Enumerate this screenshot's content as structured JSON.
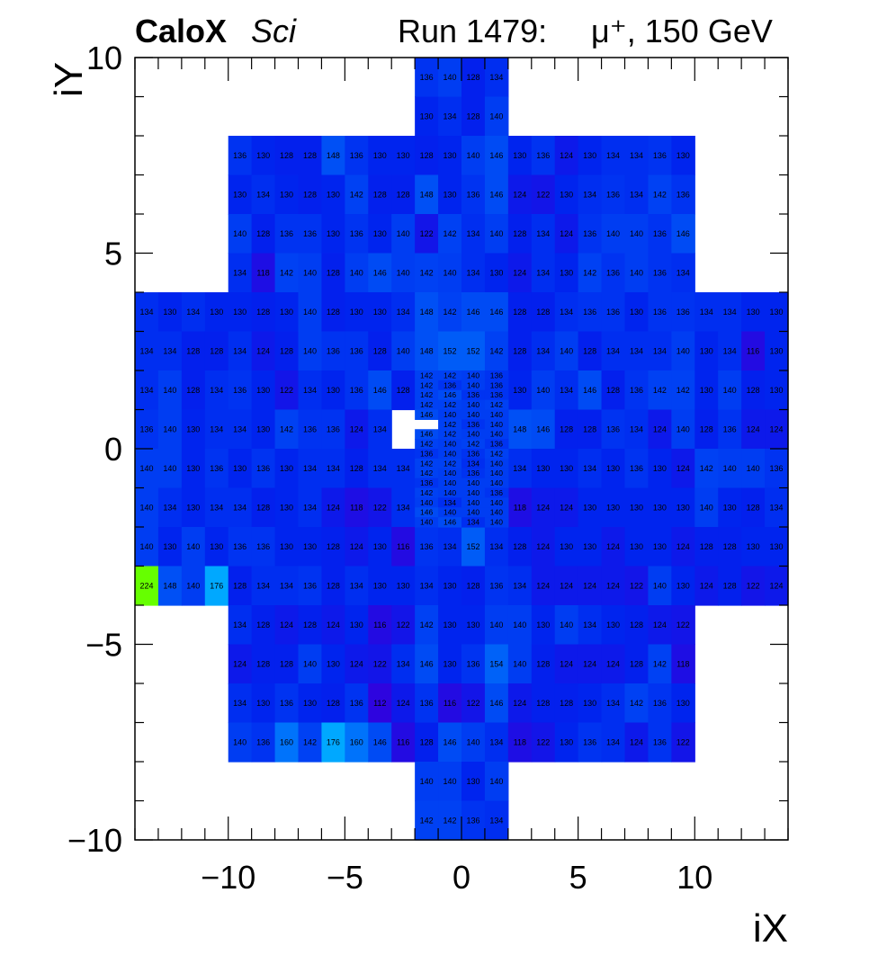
{
  "chart_data": {
    "type": "heatmap",
    "title_bold": "CaloX",
    "title_italic": "Sci",
    "run_label": "Run 1479:",
    "particle_label": "μ⁺, 150 GeV",
    "xlabel": "iX",
    "ylabel": "iY",
    "xlim": [
      -14,
      14
    ],
    "ylim": [
      -10,
      10
    ],
    "xticks": [
      "−10",
      "−5",
      "0",
      "5",
      "10"
    ],
    "yticks": [
      "−10",
      "−5",
      "0",
      "5",
      "10"
    ],
    "xtick_values": [
      -10,
      -5,
      0,
      5,
      10
    ],
    "ytick_values": [
      -10,
      -5,
      0,
      5,
      10
    ],
    "color_scale": [
      "#3300dd",
      "#0022ee",
      "#0050f5",
      "#0088ff",
      "#00ccff",
      "#00ffcc",
      "#66ff00"
    ],
    "value_range": [
      110,
      224
    ],
    "rows_large": [
      {
        "y": 9.5,
        "x0": -2,
        "values": [
          136,
          140,
          128,
          134
        ]
      },
      {
        "y": 8.5,
        "x0": -2,
        "values": [
          130,
          134,
          128,
          140
        ]
      },
      {
        "y": 7.5,
        "x0": -10,
        "values": [
          136,
          130,
          128,
          128,
          148,
          136,
          130,
          130,
          128,
          130,
          140,
          146,
          130,
          136,
          124,
          130,
          134,
          134,
          136,
          130
        ]
      },
      {
        "y": 6.5,
        "x0": -10,
        "values": [
          130,
          134,
          130,
          128,
          130,
          142,
          128,
          128,
          148,
          130,
          136,
          146,
          124,
          122,
          130,
          134,
          136,
          134,
          142,
          136
        ]
      },
      {
        "y": 5.5,
        "x0": -10,
        "values": [
          140,
          128,
          136,
          136,
          130,
          136,
          130,
          140,
          122,
          142,
          134,
          140,
          128,
          134,
          124,
          136,
          140,
          140,
          136,
          146
        ]
      },
      {
        "y": 4.5,
        "x0": -10,
        "values": [
          134,
          118,
          142,
          140,
          128,
          140,
          146,
          140,
          142,
          140,
          134,
          130,
          124,
          134,
          130,
          142,
          136,
          140,
          136,
          134
        ]
      },
      {
        "y": 3.5,
        "x0": -14,
        "values": [
          134,
          130,
          134,
          130,
          130,
          128,
          130,
          140,
          128,
          130,
          130,
          134,
          148,
          142,
          146,
          146,
          128,
          128,
          134,
          136,
          136,
          130,
          136,
          136,
          134,
          134,
          130,
          130
        ]
      },
      {
        "y": 2.5,
        "x0": -14,
        "values": [
          134,
          134,
          128,
          128,
          134,
          124,
          128,
          140,
          136,
          136,
          128,
          140,
          148,
          152,
          152,
          142,
          128,
          134,
          140,
          128,
          134,
          134,
          134,
          140,
          130,
          134,
          116,
          130
        ]
      },
      {
        "y": 1.5,
        "x0": -14,
        "values": [
          134,
          140,
          128,
          134,
          136,
          130,
          122,
          134,
          130,
          136,
          146,
          128,
          null,
          null,
          null,
          null,
          130,
          140,
          134,
          146,
          128,
          136,
          142,
          142,
          130,
          140,
          128,
          130
        ]
      },
      {
        "y": 0.5,
        "x0": -14,
        "values": [
          136,
          140,
          130,
          134,
          134,
          130,
          142,
          136,
          136,
          124,
          134,
          null,
          null,
          null,
          null,
          null,
          148,
          146,
          128,
          128,
          136,
          134,
          124,
          140,
          128,
          136,
          124,
          124
        ]
      },
      {
        "y": -0.5,
        "x0": -14,
        "values": [
          140,
          140,
          130,
          136,
          130,
          136,
          130,
          134,
          134,
          128,
          134,
          134,
          null,
          null,
          null,
          null,
          134,
          130,
          130,
          134,
          130,
          136,
          130,
          124,
          142,
          140,
          140,
          136
        ]
      },
      {
        "y": -1.5,
        "x0": -14,
        "values": [
          140,
          134,
          130,
          134,
          134,
          128,
          130,
          134,
          124,
          118,
          122,
          134,
          null,
          null,
          null,
          null,
          118,
          124,
          124,
          130,
          130,
          130,
          130,
          130,
          140,
          130,
          128,
          134
        ]
      },
      {
        "y": -2.5,
        "x0": -14,
        "values": [
          140,
          130,
          140,
          130,
          136,
          136,
          130,
          130,
          128,
          124,
          130,
          116,
          136,
          134,
          152,
          134,
          128,
          124,
          130,
          130,
          124,
          130,
          130,
          124,
          128,
          128,
          130,
          130
        ]
      },
      {
        "y": -3.5,
        "x0": -14,
        "values": [
          224,
          148,
          140,
          176,
          128,
          134,
          134,
          136,
          128,
          134,
          130,
          130,
          134,
          130,
          128,
          136,
          134,
          124,
          124,
          124,
          124,
          122,
          140,
          130,
          124,
          128,
          122,
          124
        ]
      },
      {
        "y": -4.5,
        "x0": -10,
        "values": [
          134,
          128,
          124,
          128,
          124,
          130,
          116,
          122,
          142,
          130,
          130,
          140,
          140,
          130,
          140,
          134,
          130,
          128,
          124,
          122
        ]
      },
      {
        "y": -5.5,
        "x0": -10,
        "values": [
          124,
          128,
          128,
          140,
          130,
          124,
          122,
          134,
          146,
          130,
          136,
          154,
          140,
          128,
          124,
          124,
          124,
          128,
          142,
          118
        ]
      },
      {
        "y": -6.5,
        "x0": -10,
        "values": [
          134,
          130,
          136,
          130,
          128,
          136,
          112,
          124,
          136,
          116,
          122,
          146,
          124,
          128,
          128,
          130,
          134,
          142,
          136,
          130
        ]
      },
      {
        "y": -7.5,
        "x0": -10,
        "values": [
          140,
          136,
          160,
          142,
          176,
          160,
          146,
          116,
          128,
          146,
          140,
          134,
          118,
          122,
          130,
          136,
          134,
          124,
          136,
          122
        ]
      },
      {
        "y": -8.5,
        "x0": -2,
        "values": [
          140,
          140,
          130,
          140
        ]
      },
      {
        "y": -9.5,
        "x0": -2,
        "values": [
          142,
          142,
          136,
          134
        ]
      }
    ],
    "rows_fine": [
      {
        "y": 1.875,
        "x0": -2,
        "values": [
          142,
          142,
          140,
          136
        ]
      },
      {
        "y": 1.625,
        "x0": -2,
        "values": [
          142,
          136,
          140,
          136
        ]
      },
      {
        "y": 1.375,
        "x0": -2,
        "values": [
          142,
          146,
          136,
          136
        ]
      },
      {
        "y": 1.125,
        "x0": -2,
        "values": [
          142,
          142,
          140,
          142
        ]
      },
      {
        "y": 0.875,
        "x0": -2,
        "values": [
          146,
          140,
          140,
          140
        ]
      },
      {
        "y": 0.625,
        "x0": -1,
        "values": [
          142,
          136,
          140
        ]
      },
      {
        "y": 0.375,
        "x0": -2,
        "values": [
          146,
          142,
          140,
          140
        ]
      },
      {
        "y": 0.125,
        "x0": -2,
        "values": [
          142,
          140,
          142,
          136
        ]
      },
      {
        "y": -0.125,
        "x0": -2,
        "values": [
          136,
          140,
          136,
          142
        ]
      },
      {
        "y": -0.375,
        "x0": -2,
        "values": [
          142,
          142,
          134,
          140
        ]
      },
      {
        "y": -0.625,
        "x0": -2,
        "values": [
          142,
          140,
          136,
          140
        ]
      },
      {
        "y": -0.875,
        "x0": -2,
        "values": [
          136,
          140,
          140,
          140
        ]
      },
      {
        "y": -1.125,
        "x0": -2,
        "values": [
          142,
          140,
          140,
          136
        ]
      },
      {
        "y": -1.375,
        "x0": -2,
        "values": [
          140,
          134,
          140,
          140
        ]
      },
      {
        "y": -1.625,
        "x0": -2,
        "values": [
          146,
          140,
          140,
          140
        ]
      },
      {
        "y": -1.875,
        "x0": -2,
        "values": [
          140,
          146,
          134,
          140
        ]
      }
    ]
  }
}
